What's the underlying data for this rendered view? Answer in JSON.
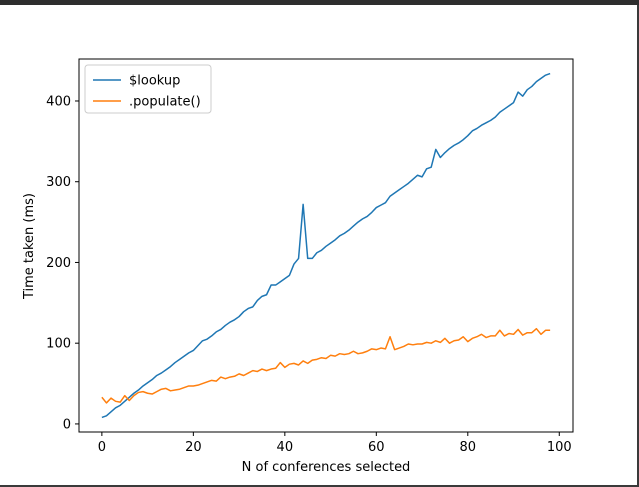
{
  "chart_data": {
    "type": "line",
    "title": "",
    "xlabel": "N of conferences selected",
    "ylabel": "Time taken (ms)",
    "xlim": [
      -5,
      103
    ],
    "ylim": [
      -10,
      452
    ],
    "xticks": [
      0,
      20,
      40,
      60,
      80,
      100
    ],
    "yticks": [
      0,
      100,
      200,
      300,
      400
    ],
    "grid": false,
    "legend_position": "top-left",
    "series": [
      {
        "name": "$lookup",
        "color": "#1f77b4",
        "x": [
          0,
          1,
          2,
          3,
          4,
          5,
          6,
          7,
          8,
          9,
          10,
          11,
          12,
          13,
          14,
          15,
          16,
          17,
          18,
          19,
          20,
          21,
          22,
          23,
          24,
          25,
          26,
          27,
          28,
          29,
          30,
          31,
          32,
          33,
          34,
          35,
          36,
          37,
          38,
          39,
          40,
          41,
          42,
          43,
          44,
          45,
          46,
          47,
          48,
          49,
          50,
          51,
          52,
          53,
          54,
          55,
          56,
          57,
          58,
          59,
          60,
          61,
          62,
          63,
          64,
          65,
          66,
          67,
          68,
          69,
          70,
          71,
          72,
          73,
          74,
          75,
          76,
          77,
          78,
          79,
          80,
          81,
          82,
          83,
          84,
          85,
          86,
          87,
          88,
          89,
          90,
          91,
          92,
          93,
          94,
          95,
          96,
          97,
          98
        ],
        "y": [
          8,
          10,
          15,
          20,
          23,
          28,
          33,
          38,
          42,
          47,
          51,
          55,
          60,
          63,
          67,
          71,
          76,
          80,
          84,
          88,
          91,
          97,
          103,
          105,
          109,
          114,
          117,
          122,
          126,
          129,
          133,
          139,
          143,
          145,
          153,
          158,
          160,
          172,
          172,
          176,
          180,
          184,
          198,
          205,
          272,
          205,
          205,
          212,
          215,
          220,
          224,
          228,
          233,
          236,
          240,
          245,
          250,
          254,
          257,
          262,
          268,
          271,
          274,
          282,
          286,
          290,
          294,
          298,
          303,
          308,
          306,
          316,
          318,
          340,
          330,
          336,
          341,
          345,
          348,
          352,
          357,
          363,
          366,
          370,
          373,
          376,
          380,
          386,
          390,
          394,
          398,
          411,
          406,
          414,
          418,
          424,
          428,
          432,
          434
        ]
      },
      {
        "name": ".populate()",
        "color": "#ff7f0e",
        "x": [
          0,
          1,
          2,
          3,
          4,
          5,
          6,
          7,
          8,
          9,
          10,
          11,
          12,
          13,
          14,
          15,
          16,
          17,
          18,
          19,
          20,
          21,
          22,
          23,
          24,
          25,
          26,
          27,
          28,
          29,
          30,
          31,
          32,
          33,
          34,
          35,
          36,
          37,
          38,
          39,
          40,
          41,
          42,
          43,
          44,
          45,
          46,
          47,
          48,
          49,
          50,
          51,
          52,
          53,
          54,
          55,
          56,
          57,
          58,
          59,
          60,
          61,
          62,
          63,
          64,
          65,
          66,
          67,
          68,
          69,
          70,
          71,
          72,
          73,
          74,
          75,
          76,
          77,
          78,
          79,
          80,
          81,
          82,
          83,
          84,
          85,
          86,
          87,
          88,
          89,
          90,
          91,
          92,
          93,
          94,
          95,
          96,
          97,
          98
        ],
        "y": [
          33,
          26,
          32,
          28,
          27,
          35,
          29,
          35,
          39,
          40,
          38,
          37,
          40,
          43,
          44,
          41,
          42,
          43,
          45,
          47,
          47,
          48,
          50,
          52,
          54,
          53,
          58,
          56,
          58,
          59,
          62,
          60,
          63,
          66,
          65,
          68,
          66,
          68,
          69,
          76,
          70,
          74,
          75,
          73,
          78,
          75,
          79,
          80,
          82,
          81,
          85,
          84,
          87,
          86,
          87,
          90,
          87,
          88,
          90,
          93,
          92,
          94,
          93,
          108,
          92,
          94,
          96,
          99,
          98,
          99,
          99,
          101,
          100,
          103,
          101,
          106,
          100,
          103,
          104,
          108,
          102,
          106,
          108,
          111,
          107,
          109,
          109,
          116,
          109,
          112,
          111,
          117,
          110,
          113,
          113,
          118,
          111,
          116,
          116
        ]
      }
    ]
  }
}
